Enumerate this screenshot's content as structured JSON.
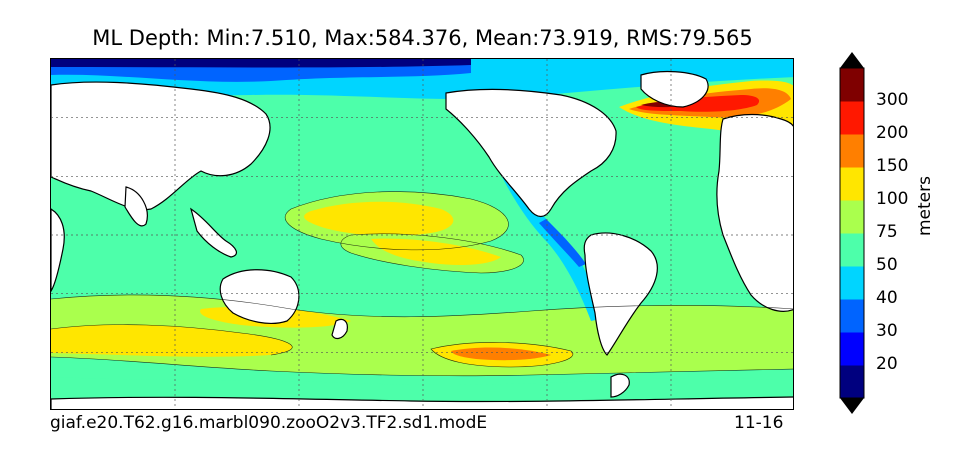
{
  "title": "ML Depth: Min:7.510, Max:584.376, Mean:73.919, RMS:79.565",
  "footer": {
    "case_name": "giaf.e20.T62.g16.marbl090.zooO2v3.TF2.sd1.modE",
    "date_range": "11-16"
  },
  "colorbar": {
    "unit_label": "meters",
    "tick_labels": [
      "20",
      "30",
      "40",
      "50",
      "75",
      "100",
      "150",
      "200",
      "300"
    ],
    "colors": [
      "#00007f",
      "#0000ff",
      "#0064ff",
      "#00d5ff",
      "#4dffaa",
      "#aaff4d",
      "#ffe600",
      "#ff7f00",
      "#ff1800",
      "#7f0000"
    ],
    "extend": "both"
  },
  "map": {
    "projection": "global lat-lon, Pacific-centered",
    "land_color": "#ffffff",
    "gridlines": "dotted",
    "dominant_levels": [
      "50-75",
      "75-100",
      "100-150"
    ]
  }
}
